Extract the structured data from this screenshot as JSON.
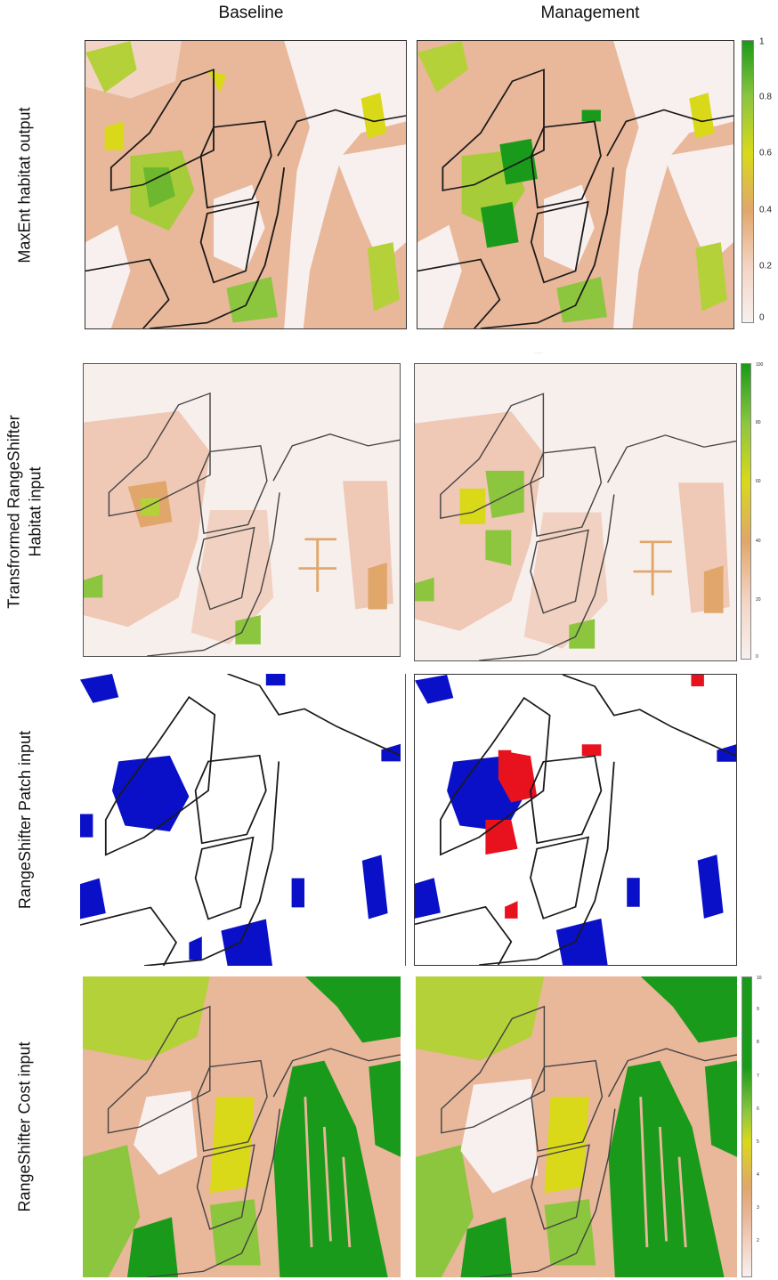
{
  "columns": {
    "baseline": "Baseline",
    "management": "Management"
  },
  "rows": {
    "maxent": "MaxEnt habitat output",
    "habitat_line1": "Transfrormed RangeShifter",
    "habitat_line2": "Habitat input",
    "patch": "RangeShifter Patch input",
    "cost": "RangeShifter Cost input"
  },
  "legends": {
    "maxent": [
      "1",
      "0.8",
      "0.6",
      "0.4",
      "0.2",
      "0"
    ],
    "habitat": [
      "100",
      "80",
      "60",
      "40",
      "20",
      "0"
    ],
    "cost": [
      "10",
      "9",
      "8",
      "7",
      "6",
      "5",
      "4",
      "3",
      "2"
    ]
  },
  "colors": {
    "low": "#f7f0ee",
    "salmon": "#e9b79a",
    "tan": "#e0a66a",
    "yellow": "#d9d91a",
    "lightgreen": "#8cc63f",
    "green": "#1a9a1a",
    "patch_blue": "#0a10c8",
    "patch_red": "#e8121e",
    "boundary": "#1a1a1a"
  }
}
